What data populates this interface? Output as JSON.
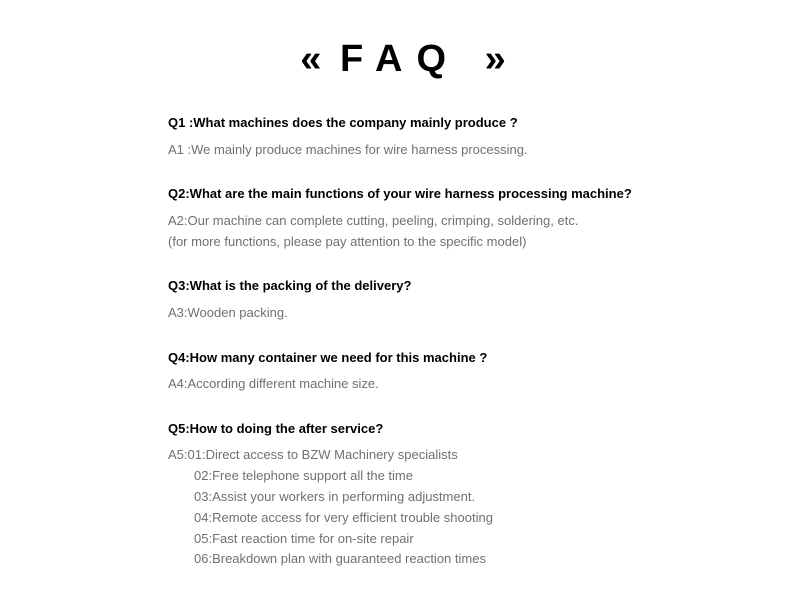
{
  "title": {
    "arrow_left": "«",
    "text": "FAQ",
    "arrow_right": "»"
  },
  "items": [
    {
      "question": "Q1 :What machines does the company mainly produce ?",
      "answer_lines": [
        {
          "text": "A1 :We mainly produce machines for wire harness processing.",
          "indent": false
        }
      ]
    },
    {
      "question": "Q2:What are the main functions of your wire harness processing machine?",
      "answer_lines": [
        {
          "text": "A2:Our machine can complete cutting, peeling, crimping, soldering, etc.",
          "indent": false
        },
        {
          "text": " (for more functions, please pay attention to the specific model)",
          "indent": false
        }
      ]
    },
    {
      "question": "Q3:What is the packing of the delivery?",
      "answer_lines": [
        {
          "text": "A3:Wooden packing.",
          "indent": false
        }
      ]
    },
    {
      "question": "Q4:How many container we need for this machine ?",
      "answer_lines": [
        {
          "text": "A4:According different machine size.",
          "indent": false
        }
      ]
    },
    {
      "question": "Q5:How to doing the after service?",
      "answer_lines": [
        {
          "text": "A5:01:Direct access to BZW Machinery specialists",
          "indent": false
        },
        {
          "text": "02:Free telephone support all the time",
          "indent": true
        },
        {
          "text": "03:Assist your workers in performing adjustment.",
          "indent": true
        },
        {
          "text": "04:Remote access for very efficient trouble shooting",
          "indent": true
        },
        {
          "text": "05:Fast reaction time for on-site repair",
          "indent": true
        },
        {
          "text": "06:Breakdown plan with guaranteed reaction times",
          "indent": true
        }
      ]
    }
  ]
}
